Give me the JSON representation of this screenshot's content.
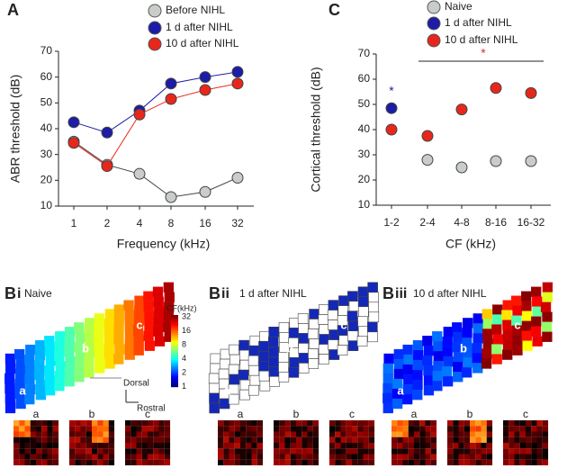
{
  "chart_data": [
    {
      "type": "line",
      "panel_label": "A",
      "ylabel": "ABR threshold (dB)",
      "xlabel": "Frequency (kHz)",
      "categories": [
        "1",
        "2",
        "4",
        "8",
        "16",
        "32"
      ],
      "series": [
        {
          "name": "Before NIHL",
          "color": "#c9cdc9",
          "values": [
            35,
            26,
            22.5,
            13.5,
            15.5,
            21
          ]
        },
        {
          "name": "1 d after NIHL",
          "color": "#1c1ca8",
          "values": [
            42.5,
            38.5,
            47,
            57.5,
            60,
            62
          ]
        },
        {
          "name": "10 d after NIHL",
          "color": "#e8271c",
          "values": [
            34.5,
            25.5,
            45.5,
            51.5,
            55,
            57.5
          ]
        }
      ],
      "ylim": [
        10,
        70
      ],
      "yticks": [
        10,
        20,
        30,
        40,
        50,
        60,
        70
      ]
    },
    {
      "type": "scatter",
      "panel_label": "C",
      "ylabel": "Cortical threshold (dB)",
      "xlabel": "CF (kHz)",
      "categories": [
        "1-2",
        "2-4",
        "4-8",
        "8-16",
        "16-32"
      ],
      "series": [
        {
          "name": "Naive",
          "color": "#c9cdc9",
          "values": [
            null,
            28,
            25,
            27.5,
            27.5
          ]
        },
        {
          "name": "1 d after NIHL",
          "color": "#1c1ca8",
          "values": [
            48.5,
            null,
            null,
            null,
            null
          ]
        },
        {
          "name": "10 d after NIHL",
          "color": "#e8271c",
          "values": [
            40,
            37.5,
            48,
            56.5,
            54.5
          ]
        }
      ],
      "ylim": [
        10,
        70
      ],
      "yticks": [
        10,
        20,
        30,
        40,
        50,
        60,
        70
      ],
      "annotations": [
        {
          "text": "*",
          "color": "#1c1ca8"
        },
        {
          "text": "*",
          "color": "#e8271c"
        }
      ]
    }
  ],
  "panels": [
    {
      "letter": "B",
      "numeral": "i",
      "title": "Naive",
      "sites": [
        "a",
        "b",
        "c"
      ],
      "rasters": [
        "a",
        "b",
        "c"
      ]
    },
    {
      "letter": "B",
      "numeral": "ii",
      "title": "1 d after NIHL",
      "sites": [
        "a",
        "b",
        "c"
      ],
      "rasters": [
        "a",
        "b",
        "c"
      ]
    },
    {
      "letter": "B",
      "numeral": "iii",
      "title": "10 d after NIHL",
      "sites": [
        "a",
        "b",
        "c"
      ],
      "rasters": [
        "a",
        "b",
        "c"
      ]
    }
  ],
  "colorbar": {
    "title": "CF(kHz)",
    "ticks": [
      32,
      16,
      8,
      4,
      2,
      1
    ]
  },
  "orientation": {
    "dorsal": "Dorsal",
    "rostral": "Rostral"
  }
}
